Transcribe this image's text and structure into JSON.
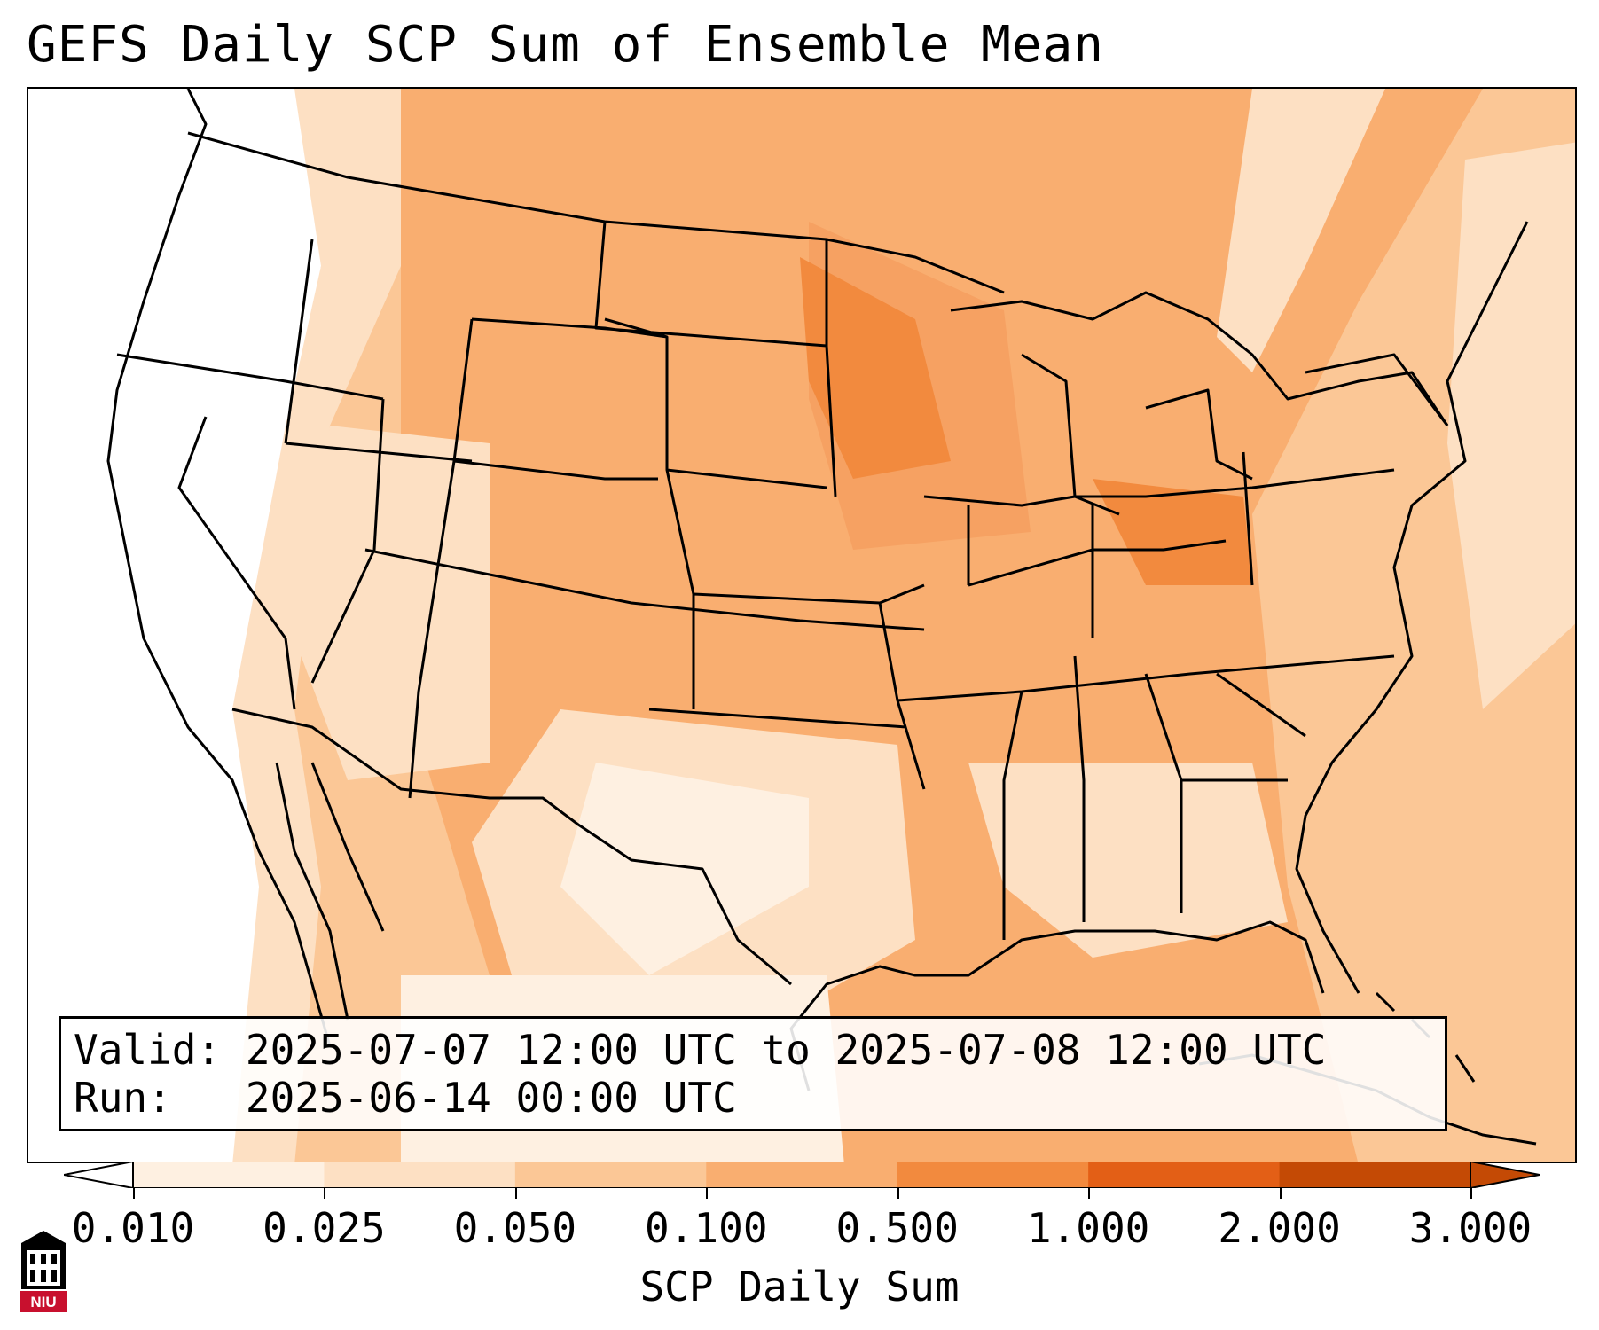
{
  "title": "GEFS Daily SCP Sum of Ensemble Mean",
  "info": {
    "valid_label": "Valid:",
    "valid_value": "2025-07-07 12:00 UTC to 2025-07-08 12:00 UTC",
    "run_label": "Run:",
    "run_value": "2025-06-14 00:00 UTC"
  },
  "colorbar": {
    "label": "SCP Daily Sum",
    "ticks": [
      "0.010",
      "0.025",
      "0.050",
      "0.100",
      "0.500",
      "1.000",
      "2.000",
      "3.000"
    ],
    "colors": [
      "#ffffff",
      "#fef0e1",
      "#fde0c3",
      "#fbc796",
      "#f9ae70",
      "#f28a3e",
      "#e35f16",
      "#c44a05"
    ]
  },
  "logo": {
    "text": "NIU"
  },
  "map": {
    "region": "Continental United States",
    "field_colors": {
      "none": "#ffffff",
      "very_light": "#fef0e1",
      "light": "#fde0c3",
      "medium_light": "#fbc796",
      "medium": "#f9ae70",
      "medium_dark": "#f6a162",
      "dark": "#f28a3e",
      "darkest": "#e35f16"
    }
  }
}
